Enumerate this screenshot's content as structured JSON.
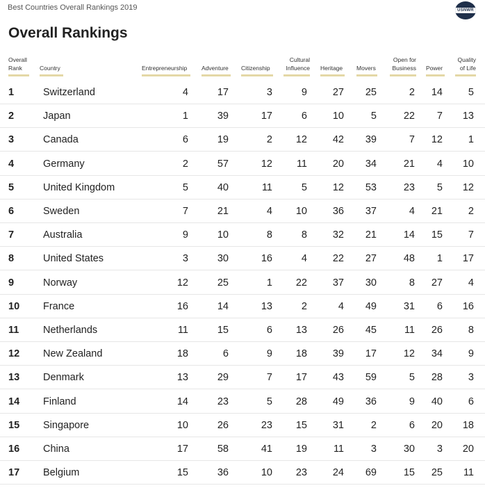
{
  "header": {
    "caption": "Best Countries Overall Rankings 2019",
    "logo_text": "USNWR",
    "title": "Overall Rankings"
  },
  "columns": {
    "rank": [
      "Overall",
      "Rank"
    ],
    "country": [
      "Country"
    ],
    "entrepreneurship": [
      "Entrepreneurship"
    ],
    "adventure": [
      "Adventure"
    ],
    "citizenship": [
      "Citizenship"
    ],
    "cultural": [
      "Cultural",
      "Influence"
    ],
    "heritage": [
      "Heritage"
    ],
    "movers": [
      "Movers"
    ],
    "open": [
      "Open for",
      "Business"
    ],
    "power": [
      "Power"
    ],
    "quality": [
      "Quality",
      "of Life"
    ]
  },
  "rows": [
    {
      "rank": "1",
      "country": "Switzerland",
      "entrepreneurship": "4",
      "adventure": "17",
      "citizenship": "3",
      "cultural": "9",
      "heritage": "27",
      "movers": "25",
      "open": "2",
      "power": "14",
      "quality": "5"
    },
    {
      "rank": "2",
      "country": "Japan",
      "entrepreneurship": "1",
      "adventure": "39",
      "citizenship": "17",
      "cultural": "6",
      "heritage": "10",
      "movers": "5",
      "open": "22",
      "power": "7",
      "quality": "13"
    },
    {
      "rank": "3",
      "country": "Canada",
      "entrepreneurship": "6",
      "adventure": "19",
      "citizenship": "2",
      "cultural": "12",
      "heritage": "42",
      "movers": "39",
      "open": "7",
      "power": "12",
      "quality": "1"
    },
    {
      "rank": "4",
      "country": "Germany",
      "entrepreneurship": "2",
      "adventure": "57",
      "citizenship": "12",
      "cultural": "11",
      "heritage": "20",
      "movers": "34",
      "open": "21",
      "power": "4",
      "quality": "10"
    },
    {
      "rank": "5",
      "country": "United Kingdom",
      "entrepreneurship": "5",
      "adventure": "40",
      "citizenship": "11",
      "cultural": "5",
      "heritage": "12",
      "movers": "53",
      "open": "23",
      "power": "5",
      "quality": "12"
    },
    {
      "rank": "6",
      "country": "Sweden",
      "entrepreneurship": "7",
      "adventure": "21",
      "citizenship": "4",
      "cultural": "10",
      "heritage": "36",
      "movers": "37",
      "open": "4",
      "power": "21",
      "quality": "2"
    },
    {
      "rank": "7",
      "country": "Australia",
      "entrepreneurship": "9",
      "adventure": "10",
      "citizenship": "8",
      "cultural": "8",
      "heritage": "32",
      "movers": "21",
      "open": "14",
      "power": "15",
      "quality": "7"
    },
    {
      "rank": "8",
      "country": "United States",
      "entrepreneurship": "3",
      "adventure": "30",
      "citizenship": "16",
      "cultural": "4",
      "heritage": "22",
      "movers": "27",
      "open": "48",
      "power": "1",
      "quality": "17"
    },
    {
      "rank": "9",
      "country": "Norway",
      "entrepreneurship": "12",
      "adventure": "25",
      "citizenship": "1",
      "cultural": "22",
      "heritage": "37",
      "movers": "30",
      "open": "8",
      "power": "27",
      "quality": "4"
    },
    {
      "rank": "10",
      "country": "France",
      "entrepreneurship": "16",
      "adventure": "14",
      "citizenship": "13",
      "cultural": "2",
      "heritage": "4",
      "movers": "49",
      "open": "31",
      "power": "6",
      "quality": "16"
    },
    {
      "rank": "11",
      "country": "Netherlands",
      "entrepreneurship": "11",
      "adventure": "15",
      "citizenship": "6",
      "cultural": "13",
      "heritage": "26",
      "movers": "45",
      "open": "11",
      "power": "26",
      "quality": "8"
    },
    {
      "rank": "12",
      "country": "New Zealand",
      "entrepreneurship": "18",
      "adventure": "6",
      "citizenship": "9",
      "cultural": "18",
      "heritage": "39",
      "movers": "17",
      "open": "12",
      "power": "34",
      "quality": "9"
    },
    {
      "rank": "13",
      "country": "Denmark",
      "entrepreneurship": "13",
      "adventure": "29",
      "citizenship": "7",
      "cultural": "17",
      "heritage": "43",
      "movers": "59",
      "open": "5",
      "power": "28",
      "quality": "3"
    },
    {
      "rank": "14",
      "country": "Finland",
      "entrepreneurship": "14",
      "adventure": "23",
      "citizenship": "5",
      "cultural": "28",
      "heritage": "49",
      "movers": "36",
      "open": "9",
      "power": "40",
      "quality": "6"
    },
    {
      "rank": "15",
      "country": "Singapore",
      "entrepreneurship": "10",
      "adventure": "26",
      "citizenship": "23",
      "cultural": "15",
      "heritage": "31",
      "movers": "2",
      "open": "6",
      "power": "20",
      "quality": "18"
    },
    {
      "rank": "16",
      "country": "China",
      "entrepreneurship": "17",
      "adventure": "58",
      "citizenship": "41",
      "cultural": "19",
      "heritage": "11",
      "movers": "3",
      "open": "30",
      "power": "3",
      "quality": "20"
    },
    {
      "rank": "17",
      "country": "Belgium",
      "entrepreneurship": "15",
      "adventure": "36",
      "citizenship": "10",
      "cultural": "23",
      "heritage": "24",
      "movers": "69",
      "open": "15",
      "power": "25",
      "quality": "11"
    }
  ]
}
